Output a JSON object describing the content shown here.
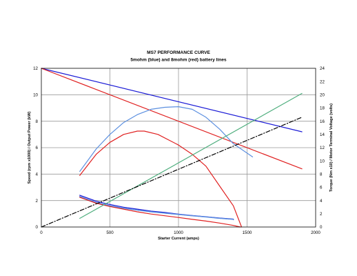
{
  "chart_data": {
    "type": "line",
    "title": "MS7 PERFORMANCE CURVE",
    "subtitle": "5mohm (blue) and 8mohm (red) battery lines",
    "xlabel": "Starter Current (amps)",
    "ylabel_left": "Speed (rpm x1000) / Output Power (kW)",
    "ylabel_right": "Torque (Nm x10) / Motor Terminal Voltage (volts)",
    "xlim": [
      0,
      2000
    ],
    "ylim_left": [
      0,
      12
    ],
    "ylim_right": [
      0,
      24
    ],
    "x_ticks": [
      "0",
      "500",
      "1000",
      "1500",
      "2000"
    ],
    "y_left_ticks": [
      "0",
      "2",
      "4",
      "6",
      "8",
      "10",
      "12"
    ],
    "y_right_ticks": [
      "0",
      "2",
      "4",
      "6",
      "8",
      "10",
      "12",
      "14",
      "16",
      "18",
      "20",
      "22",
      "24"
    ],
    "grid": true,
    "colors": {
      "blue": "#1a1ad6",
      "light_blue": "#5b8fe0",
      "red": "#e02020",
      "green": "#4fae7e",
      "black": "#000000",
      "grid": "#999999"
    },
    "series": [
      {
        "style": "blue",
        "axis": "right",
        "dash": "solid",
        "points": [
          [
            0,
            24
          ],
          [
            1900,
            14.4
          ]
        ]
      },
      {
        "style": "red",
        "axis": "right",
        "dash": "solid",
        "points": [
          [
            0,
            24
          ],
          [
            1900,
            8.8
          ]
        ]
      },
      {
        "style": "light_blue",
        "axis": "left",
        "dash": "solid",
        "points": [
          [
            280,
            4.2
          ],
          [
            400,
            5.9
          ],
          [
            500,
            7.0
          ],
          [
            600,
            7.9
          ],
          [
            700,
            8.5
          ],
          [
            800,
            8.9
          ],
          [
            900,
            9.05
          ],
          [
            1000,
            9.1
          ],
          [
            1100,
            8.9
          ],
          [
            1200,
            8.3
          ],
          [
            1300,
            7.4
          ],
          [
            1400,
            6.3
          ],
          [
            1540,
            5.3
          ]
        ]
      },
      {
        "style": "red",
        "axis": "left",
        "dash": "solid",
        "points": [
          [
            280,
            3.9
          ],
          [
            400,
            5.5
          ],
          [
            500,
            6.4
          ],
          [
            600,
            7.0
          ],
          [
            700,
            7.25
          ],
          [
            750,
            7.25
          ],
          [
            850,
            7.0
          ],
          [
            1000,
            6.2
          ],
          [
            1100,
            5.5
          ],
          [
            1200,
            4.6
          ],
          [
            1300,
            3.1
          ],
          [
            1400,
            1.6
          ],
          [
            1460,
            0
          ]
        ]
      },
      {
        "style": "blue",
        "axis": "left",
        "dash": "solid",
        "points": [
          [
            280,
            2.4
          ],
          [
            400,
            1.95
          ],
          [
            500,
            1.7
          ],
          [
            600,
            1.5
          ],
          [
            700,
            1.35
          ],
          [
            800,
            1.2
          ],
          [
            900,
            1.1
          ],
          [
            1000,
            0.97
          ],
          [
            1100,
            0.87
          ],
          [
            1200,
            0.78
          ],
          [
            1300,
            0.68
          ],
          [
            1400,
            0.6
          ],
          [
            1400,
            0.55
          ]
        ]
      },
      {
        "style": "light_blue",
        "axis": "left",
        "dash": "dot",
        "points": [
          [
            280,
            2.3
          ],
          [
            400,
            1.85
          ],
          [
            500,
            1.6
          ],
          [
            600,
            1.42
          ],
          [
            700,
            1.28
          ],
          [
            800,
            1.15
          ],
          [
            900,
            1.05
          ],
          [
            1000,
            0.95
          ],
          [
            1100,
            0.85
          ],
          [
            1200,
            0.76
          ],
          [
            1300,
            0.66
          ],
          [
            1400,
            0.58
          ]
        ]
      },
      {
        "style": "red",
        "axis": "left",
        "dash": "solid",
        "points": [
          [
            280,
            2.25
          ],
          [
            400,
            1.8
          ],
          [
            500,
            1.55
          ],
          [
            600,
            1.35
          ],
          [
            700,
            1.15
          ],
          [
            800,
            0.98
          ],
          [
            900,
            0.85
          ],
          [
            1000,
            0.72
          ],
          [
            1100,
            0.58
          ],
          [
            1200,
            0.45
          ],
          [
            1300,
            0.3
          ],
          [
            1400,
            0.12
          ],
          [
            1450,
            0
          ]
        ]
      },
      {
        "style": "green",
        "axis": "right",
        "dash": "solid",
        "points": [
          [
            280,
            1.3
          ],
          [
            1900,
            20.2
          ]
        ]
      },
      {
        "style": "black",
        "axis": "right",
        "dash": "dashdot",
        "points": [
          [
            0,
            0
          ],
          [
            1900,
            16.6
          ]
        ]
      }
    ]
  }
}
